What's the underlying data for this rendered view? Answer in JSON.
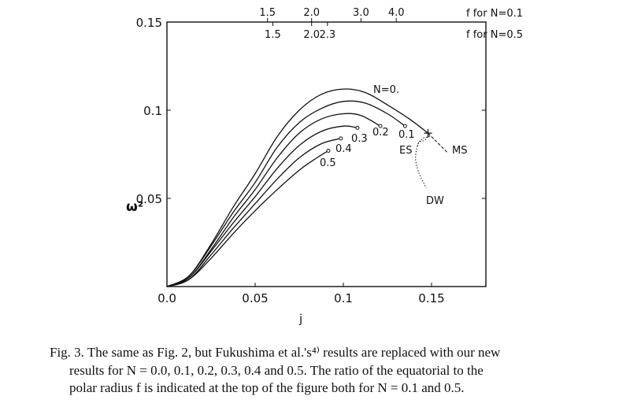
{
  "chart_data": {
    "type": "line",
    "xlabel": "j",
    "ylabel": "ω²",
    "xlim": [
      0,
      0.182
    ],
    "ylim": [
      0,
      0.15
    ],
    "x_ticks": [
      {
        "value": 0,
        "label": "0.0"
      },
      {
        "value": 0.05,
        "label": "0.05"
      },
      {
        "value": 0.1,
        "label": "0.1"
      },
      {
        "value": 0.15,
        "label": "0.15"
      }
    ],
    "y_ticks": [
      {
        "value": 0.05,
        "label": "0.05"
      },
      {
        "value": 0.1,
        "label": "0.1"
      },
      {
        "value": 0.15,
        "label": "0.15"
      }
    ],
    "top_axis_N01": {
      "label": "f  for  N=0.1",
      "ticks": [
        {
          "j": 0.057,
          "label": "1.5"
        },
        {
          "j": 0.082,
          "label": "2.0"
        },
        {
          "j": 0.11,
          "label": "3.0"
        },
        {
          "j": 0.13,
          "label": "4.0"
        }
      ]
    },
    "top_axis_N05": {
      "label": "f  for  N=0.5",
      "ticks": [
        {
          "j": 0.06,
          "label": "1.5"
        },
        {
          "j": 0.082,
          "label": "2.0"
        },
        {
          "j": 0.091,
          "label": "2.3"
        }
      ]
    },
    "series": [
      {
        "name": "N=0.",
        "points": [
          [
            0,
            0
          ],
          [
            0.0125,
            0.006
          ],
          [
            0.025,
            0.024
          ],
          [
            0.0375,
            0.045
          ],
          [
            0.05,
            0.064
          ],
          [
            0.0625,
            0.085
          ],
          [
            0.075,
            0.1
          ],
          [
            0.0875,
            0.109
          ],
          [
            0.1,
            0.112
          ],
          [
            0.1125,
            0.11
          ],
          [
            0.125,
            0.103
          ],
          [
            0.1375,
            0.095
          ],
          [
            0.148,
            0.087
          ]
        ]
      },
      {
        "name": "0.1",
        "points": [
          [
            0,
            0
          ],
          [
            0.0125,
            0.006
          ],
          [
            0.025,
            0.023
          ],
          [
            0.0375,
            0.042
          ],
          [
            0.05,
            0.059
          ],
          [
            0.0625,
            0.079
          ],
          [
            0.075,
            0.093
          ],
          [
            0.0875,
            0.101
          ],
          [
            0.1,
            0.105
          ],
          [
            0.1125,
            0.104
          ],
          [
            0.125,
            0.098
          ],
          [
            0.135,
            0.091
          ]
        ]
      },
      {
        "name": "0.2",
        "points": [
          [
            0,
            0
          ],
          [
            0.0125,
            0.005
          ],
          [
            0.025,
            0.021
          ],
          [
            0.0375,
            0.039
          ],
          [
            0.05,
            0.055
          ],
          [
            0.0625,
            0.073
          ],
          [
            0.075,
            0.087
          ],
          [
            0.0875,
            0.095
          ],
          [
            0.1,
            0.098
          ],
          [
            0.11,
            0.097
          ],
          [
            0.121,
            0.091
          ]
        ]
      },
      {
        "name": "0.3",
        "points": [
          [
            0,
            0
          ],
          [
            0.0125,
            0.005
          ],
          [
            0.025,
            0.02
          ],
          [
            0.0375,
            0.036
          ],
          [
            0.05,
            0.051
          ],
          [
            0.0625,
            0.067
          ],
          [
            0.075,
            0.08
          ],
          [
            0.0875,
            0.088
          ],
          [
            0.1,
            0.091
          ],
          [
            0.108,
            0.09
          ]
        ]
      },
      {
        "name": "0.4",
        "points": [
          [
            0,
            0
          ],
          [
            0.0125,
            0.004
          ],
          [
            0.025,
            0.018
          ],
          [
            0.0375,
            0.033
          ],
          [
            0.05,
            0.047
          ],
          [
            0.0625,
            0.061
          ],
          [
            0.075,
            0.073
          ],
          [
            0.0875,
            0.081
          ],
          [
            0.0986,
            0.084
          ]
        ]
      },
      {
        "name": "0.5",
        "points": [
          [
            0,
            0
          ],
          [
            0.0125,
            0.004
          ],
          [
            0.025,
            0.016
          ],
          [
            0.0375,
            0.03
          ],
          [
            0.05,
            0.043
          ],
          [
            0.0625,
            0.055
          ],
          [
            0.075,
            0.066
          ],
          [
            0.085,
            0.073
          ],
          [
            0.0915,
            0.077
          ]
        ]
      }
    ],
    "annotations": [
      {
        "label": "ES",
        "style": "dotted",
        "points": [
          [
            0.149,
            0.086
          ],
          [
            0.146,
            0.083
          ],
          [
            0.143,
            0.082
          ],
          [
            0.142,
            0.079
          ]
        ]
      },
      {
        "label": "MS",
        "style": "dashed",
        "points": [
          [
            0.148,
            0.087
          ],
          [
            0.153,
            0.082
          ],
          [
            0.159,
            0.076
          ]
        ]
      },
      {
        "label": "DW",
        "style": "dotted",
        "points": [
          [
            0.149,
            0.085
          ],
          [
            0.145,
            0.084
          ],
          [
            0.142,
            0.08
          ],
          [
            0.141,
            0.072
          ],
          [
            0.143,
            0.064
          ],
          [
            0.147,
            0.056
          ]
        ]
      }
    ]
  },
  "caption": {
    "line1": "Fig. 3.   The same as Fig. 2, but Fukushima et al.'s⁴⁾ results are replaced with our new",
    "line2": "results for N = 0.0, 0.1, 0.2, 0.3, 0.4 and 0.5.  The ratio of the equatorial to the",
    "line3": "polar radius f is indicated at the top of the figure both for N = 0.1 and 0.5."
  }
}
